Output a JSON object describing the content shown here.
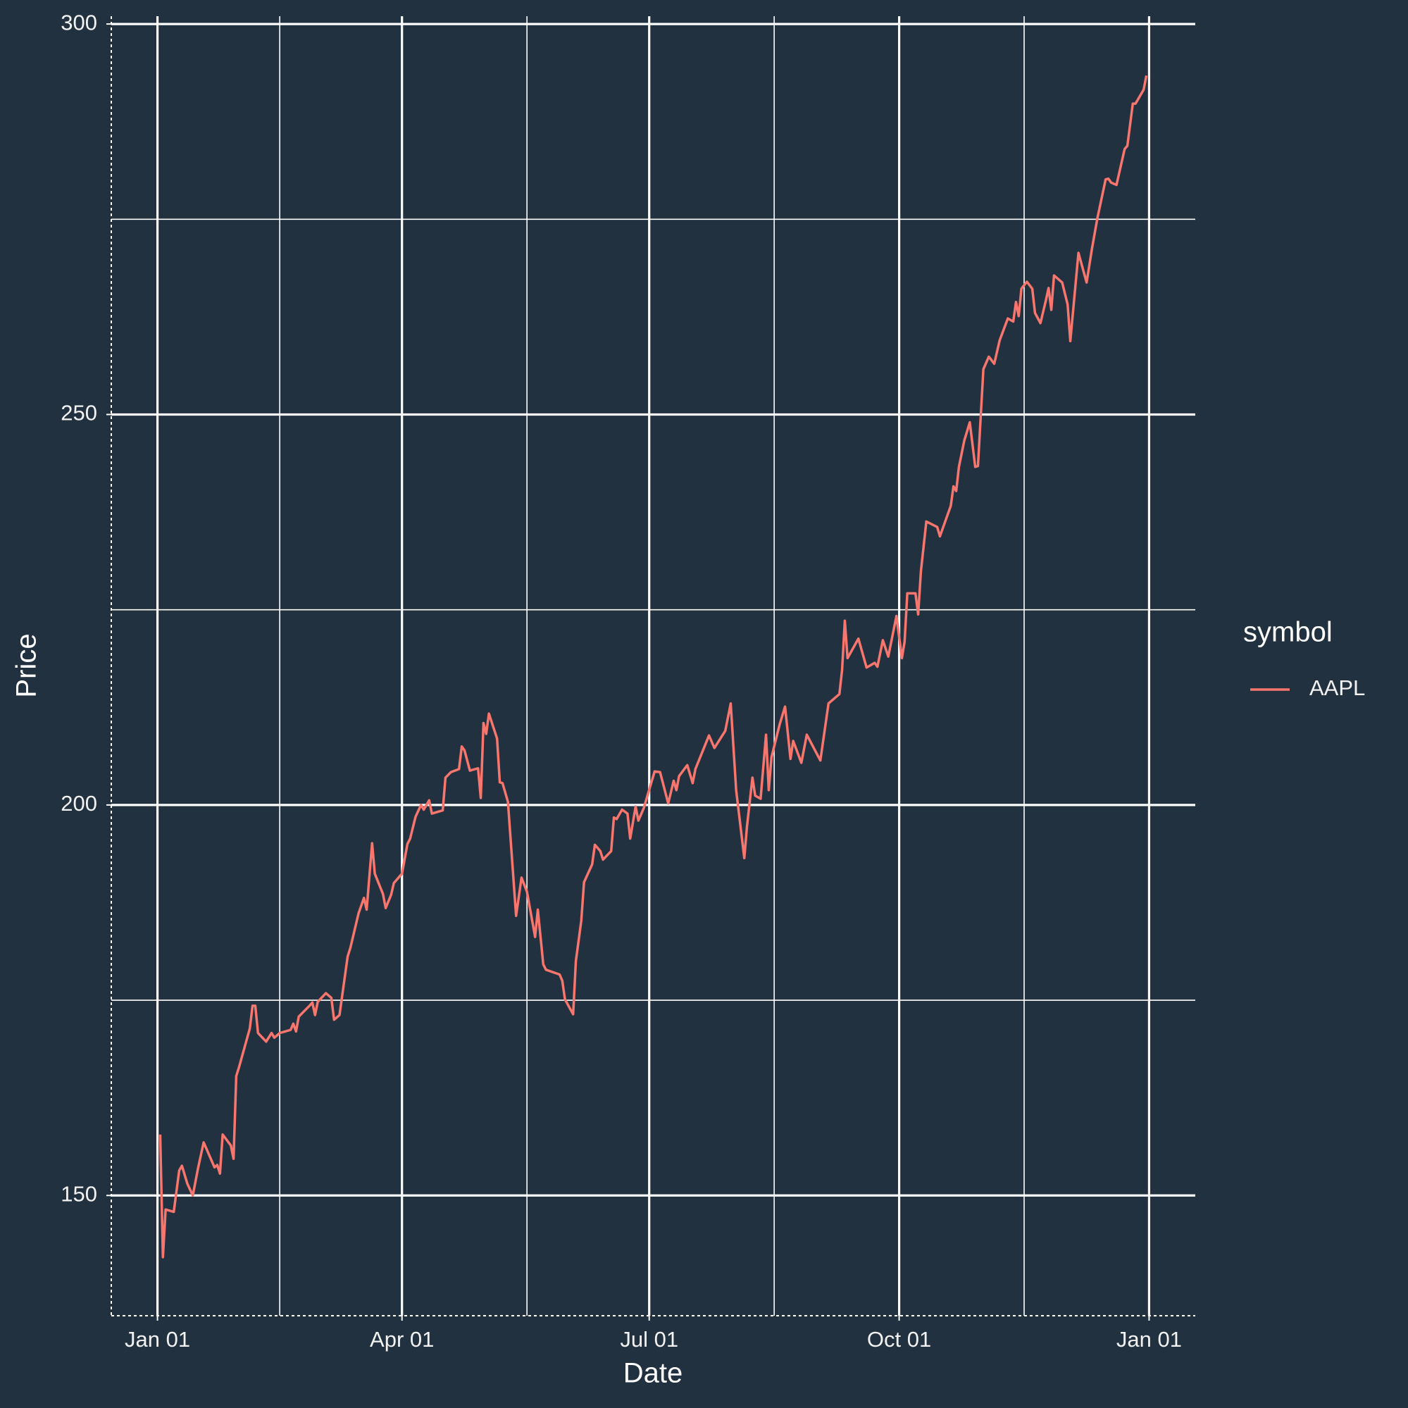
{
  "chart_data": {
    "type": "line",
    "x_label": "Date",
    "y_label": "Price",
    "legend_title": "symbol",
    "x": [
      1,
      2,
      3,
      6,
      8,
      9,
      11,
      13,
      15,
      17,
      21,
      22,
      23,
      24,
      27,
      28,
      29,
      30,
      34,
      35,
      36,
      37,
      40,
      42,
      43,
      45,
      49,
      50,
      51,
      52,
      56,
      57,
      58,
      59,
      62,
      64,
      65,
      67,
      70,
      71,
      74,
      76,
      77,
      79,
      80,
      83,
      84,
      86,
      87,
      90,
      92,
      93,
      95,
      97,
      98,
      100,
      101,
      104,
      105,
      106,
      108,
      111,
      112,
      113,
      115,
      118,
      119,
      120,
      121,
      122,
      125,
      126,
      127,
      129,
      132,
      134,
      136,
      139,
      140,
      142,
      143,
      148,
      149,
      150,
      153,
      154,
      156,
      157,
      160,
      161,
      163,
      164,
      167,
      168,
      169,
      171,
      173,
      174,
      176,
      177,
      179,
      183,
      185,
      188,
      190,
      191,
      192,
      195,
      197,
      198,
      203,
      205,
      209,
      211,
      213,
      216,
      217,
      219,
      220,
      222,
      224,
      225,
      226,
      229,
      231,
      233,
      234,
      237,
      239,
      244,
      247,
      251,
      252,
      253,
      254,
      258,
      261,
      264,
      265,
      267,
      269,
      272,
      274,
      275,
      276,
      279,
      280,
      281,
      283,
      287,
      288,
      292,
      293,
      294,
      295,
      297,
      299,
      301,
      302,
      304,
      306,
      308,
      310,
      313,
      315,
      316,
      317,
      318,
      320,
      322,
      323,
      325,
      327,
      328,
      329,
      330,
      333,
      335,
      336,
      339,
      342,
      344,
      346,
      349,
      350,
      351,
      353,
      356,
      357,
      359,
      360,
      363,
      364
    ],
    "series": [
      {
        "name": "AAPL",
        "color": "#f8766d",
        "values": [
          157.8,
          142.1,
          148.2,
          147.9,
          153.2,
          153.8,
          151.5,
          150.0,
          153.6,
          156.8,
          153.6,
          153.9,
          152.8,
          157.8,
          156.4,
          154.7,
          165.3,
          166.4,
          171.4,
          174.3,
          174.3,
          170.8,
          169.7,
          170.8,
          170.2,
          170.8,
          171.2,
          172.0,
          171.0,
          172.9,
          174.3,
          174.7,
          173.1,
          174.8,
          175.9,
          175.3,
          172.5,
          173.1,
          180.6,
          181.7,
          186.1,
          188.1,
          186.6,
          195.1,
          191.2,
          188.6,
          186.8,
          188.5,
          190.0,
          191.2,
          195.0,
          195.7,
          198.5,
          200.0,
          199.4,
          200.6,
          198.9,
          199.2,
          199.3,
          203.5,
          204.2,
          204.6,
          207.5,
          207.0,
          204.4,
          204.7,
          200.9,
          210.5,
          209.1,
          211.7,
          208.5,
          202.9,
          202.8,
          200.4,
          185.8,
          190.7,
          188.9,
          183.1,
          186.6,
          179.6,
          178.9,
          178.3,
          177.5,
          175.1,
          173.2,
          180.0,
          185.2,
          190.1,
          192.4,
          194.9,
          194.1,
          193.0,
          194.1,
          198.4,
          198.2,
          199.4,
          198.9,
          195.7,
          199.8,
          198.0,
          199.6,
          204.3,
          204.2,
          200.2,
          203.1,
          201.9,
          203.7,
          205.1,
          202.8,
          204.6,
          208.9,
          207.3,
          209.5,
          213.0,
          201.9,
          193.2,
          197.3,
          203.5,
          201.2,
          200.8,
          209.0,
          201.9,
          206.1,
          210.3,
          212.6,
          205.9,
          208.2,
          205.4,
          209.0,
          205.7,
          213.0,
          214.2,
          217.3,
          223.6,
          218.8,
          221.3,
          217.6,
          218.2,
          217.7,
          221.1,
          219.0,
          224.2,
          218.8,
          220.9,
          227.1,
          227.1,
          224.4,
          229.9,
          236.3,
          235.6,
          234.4,
          238.3,
          240.8,
          240.2,
          243.3,
          246.7,
          249.0,
          243.3,
          243.4,
          255.8,
          257.4,
          256.5,
          259.5,
          262.3,
          261.9,
          264.4,
          262.6,
          266.1,
          267.0,
          266.1,
          263.0,
          261.7,
          264.6,
          266.2,
          263.4,
          267.8,
          266.9,
          264.1,
          259.4,
          270.7,
          266.9,
          271.3,
          275.2,
          280.1,
          280.2,
          279.7,
          279.4,
          284.0,
          284.4,
          289.8,
          289.8,
          291.6,
          293.4
        ]
      }
    ],
    "xlim": [
      -17,
      382
    ],
    "xticks": [
      {
        "value": 0,
        "label": "Jan 01"
      },
      {
        "value": 90,
        "label": "Apr 01"
      },
      {
        "value": 181,
        "label": "Jul 01"
      },
      {
        "value": 273,
        "label": "Oct 01"
      },
      {
        "value": 365,
        "label": "Jan 01"
      }
    ],
    "x_minor_ticks": [
      45,
      136,
      227,
      319
    ],
    "ylim": [
      134.6,
      301
    ],
    "yticks": [
      150,
      200,
      250,
      300
    ],
    "y_minor_ticks": [
      175,
      225,
      275
    ],
    "grid": true,
    "background": "#22313f"
  }
}
